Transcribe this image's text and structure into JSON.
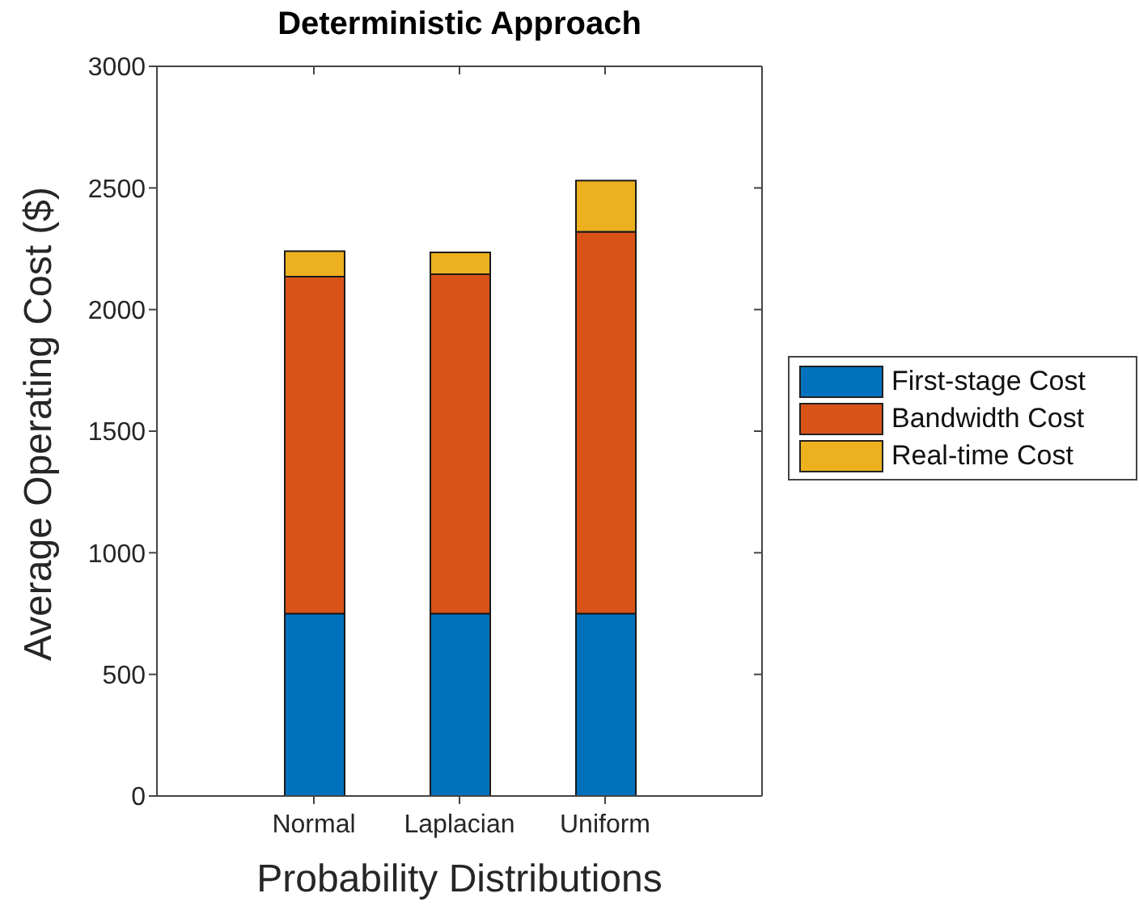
{
  "chart_data": {
    "type": "bar",
    "title": "Deterministic Approach",
    "xlabel": "Probability Distributions",
    "ylabel": "Average Operating Cost ($)",
    "categories": [
      "Normal",
      "Laplacian",
      "Uniform"
    ],
    "series": [
      {
        "name": "First-stage Cost",
        "color": "#0072bd",
        "values": [
          750,
          750,
          750
        ]
      },
      {
        "name": "Bandwidth Cost",
        "color": "#d95319",
        "values": [
          1385,
          1395,
          1570
        ]
      },
      {
        "name": "Real-time Cost",
        "color": "#edb120",
        "values": [
          105,
          90,
          210
        ]
      }
    ],
    "stacked": true,
    "ylim": [
      0,
      3000
    ],
    "yticks": [
      0,
      500,
      1000,
      1500,
      2000,
      2500,
      3000
    ],
    "legend": "right",
    "grid": false
  }
}
